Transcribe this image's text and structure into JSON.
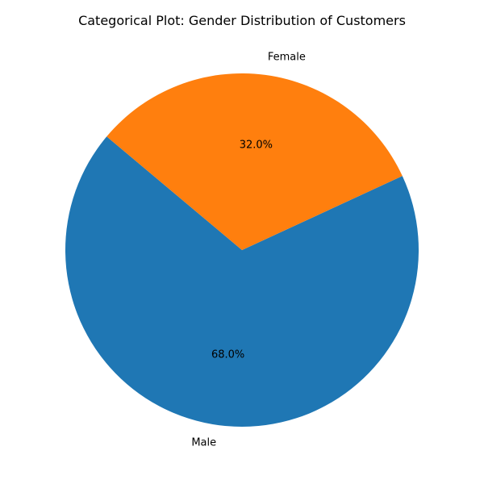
{
  "chart_data": {
    "type": "pie",
    "title": "Categorical Plot: Gender Distribution of Customers",
    "categories": [
      "Male",
      "Female"
    ],
    "values": [
      68.0,
      32.0
    ],
    "percent_labels": [
      "68.0%",
      "32.0%"
    ],
    "colors": [
      "#1f77b4",
      "#ff7f0e"
    ],
    "start_angle_deg": 140,
    "direction": "counterclockwise",
    "legend": "none"
  }
}
